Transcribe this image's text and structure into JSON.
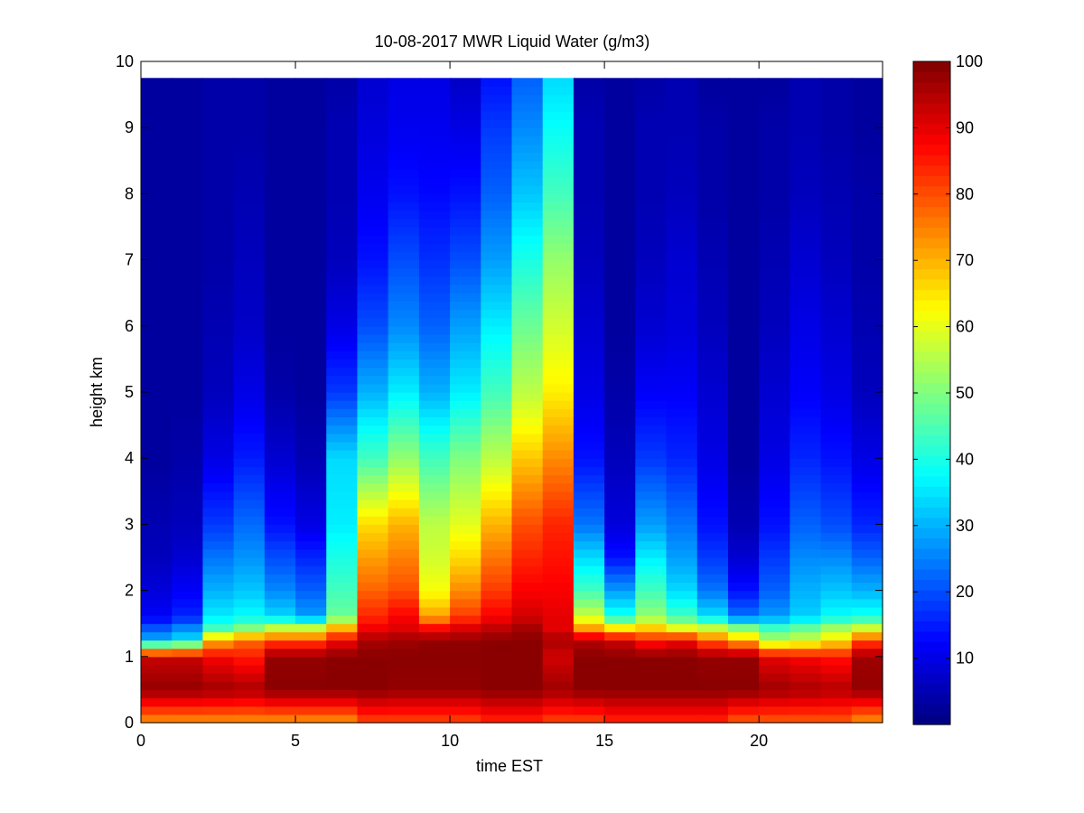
{
  "chart_data": {
    "type": "heatmap",
    "title": "10-08-2017 MWR Liquid Water (g/m3)",
    "xlabel": "time EST",
    "ylabel": "height km",
    "xlim": [
      0,
      24
    ],
    "ylim": [
      0,
      10
    ],
    "x_ticks": [
      "0",
      "5",
      "10",
      "15",
      "20"
    ],
    "y_ticks": [
      "0",
      "1",
      "2",
      "3",
      "4",
      "5",
      "6",
      "7",
      "8",
      "9",
      "10"
    ],
    "colorbar": {
      "colormap": "jet",
      "range": [
        0,
        100
      ],
      "ticks": [
        "10",
        "20",
        "30",
        "40",
        "50",
        "60",
        "70",
        "80",
        "90",
        "100"
      ]
    },
    "time_hours": [
      0.5,
      1.5,
      2.5,
      3.5,
      4.5,
      5.5,
      6.5,
      7.5,
      8.5,
      9.5,
      10.5,
      11.5,
      12.5,
      13.5,
      14.5,
      15.5,
      16.5,
      17.5,
      18.5,
      19.5,
      20.5,
      21.5,
      22.5,
      23.5
    ],
    "height_levels_km": [
      0.05,
      0.5,
      1.0,
      1.25,
      1.45,
      1.6,
      2.0,
      2.5,
      3.0,
      4.0,
      5.0,
      6.0,
      7.0,
      8.0,
      9.0,
      9.75
    ],
    "values": [
      [
        75,
        75,
        75,
        75,
        75,
        75,
        75,
        82,
        82,
        82,
        82,
        85,
        85,
        82,
        82,
        85,
        85,
        85,
        85,
        80,
        80,
        80,
        80,
        75
      ],
      [
        98,
        98,
        97,
        96,
        99,
        99,
        99,
        99,
        98,
        98,
        98,
        99,
        99,
        97,
        99,
        99,
        99,
        99,
        99,
        99,
        97,
        96,
        95,
        98
      ],
      [
        93,
        93,
        88,
        85,
        98,
        98,
        99,
        99,
        99,
        99,
        99,
        99,
        99,
        92,
        99,
        99,
        99,
        99,
        98,
        98,
        90,
        88,
        86,
        97
      ],
      [
        30,
        35,
        70,
        77,
        80,
        80,
        88,
        96,
        97,
        98,
        98,
        99,
        99,
        96,
        95,
        92,
        85,
        88,
        78,
        70,
        55,
        58,
        65,
        80
      ],
      [
        20,
        25,
        42,
        48,
        55,
        55,
        68,
        88,
        90,
        86,
        90,
        93,
        96,
        90,
        70,
        62,
        66,
        58,
        55,
        48,
        42,
        46,
        52,
        56
      ],
      [
        12,
        16,
        36,
        38,
        34,
        28,
        48,
        84,
        88,
        72,
        82,
        88,
        92,
        90,
        58,
        40,
        52,
        44,
        35,
        24,
        28,
        33,
        38,
        40
      ],
      [
        9,
        12,
        30,
        32,
        26,
        22,
        44,
        78,
        80,
        62,
        74,
        82,
        88,
        88,
        44,
        28,
        44,
        34,
        24,
        14,
        22,
        30,
        32,
        30
      ],
      [
        6,
        8,
        24,
        27,
        20,
        16,
        40,
        72,
        75,
        58,
        66,
        76,
        84,
        86,
        34,
        14,
        36,
        28,
        18,
        8,
        18,
        26,
        26,
        22
      ],
      [
        5,
        6,
        18,
        23,
        14,
        10,
        36,
        66,
        70,
        56,
        60,
        70,
        80,
        84,
        24,
        9,
        28,
        24,
        14,
        5,
        14,
        22,
        20,
        16
      ],
      [
        3,
        4,
        10,
        15,
        8,
        5,
        34,
        44,
        52,
        44,
        50,
        56,
        68,
        74,
        14,
        6,
        18,
        16,
        10,
        3,
        10,
        16,
        14,
        10
      ],
      [
        3,
        3,
        6,
        10,
        4,
        3,
        18,
        30,
        36,
        30,
        36,
        44,
        56,
        64,
        10,
        4,
        12,
        12,
        8,
        3,
        8,
        12,
        10,
        6
      ],
      [
        3,
        3,
        5,
        7,
        3,
        3,
        10,
        20,
        26,
        22,
        28,
        36,
        48,
        58,
        8,
        3,
        8,
        9,
        6,
        3,
        6,
        10,
        8,
        5
      ],
      [
        3,
        3,
        4,
        6,
        3,
        3,
        6,
        14,
        20,
        17,
        20,
        28,
        40,
        52,
        6,
        3,
        6,
        8,
        5,
        3,
        5,
        8,
        6,
        4
      ],
      [
        3,
        3,
        4,
        5,
        3,
        3,
        5,
        11,
        14,
        13,
        14,
        22,
        32,
        44,
        5,
        3,
        5,
        6,
        4,
        3,
        4,
        6,
        5,
        4
      ],
      [
        3,
        3,
        4,
        4,
        3,
        3,
        5,
        9,
        11,
        11,
        10,
        18,
        26,
        38,
        5,
        3,
        5,
        5,
        4,
        3,
        4,
        5,
        4,
        3
      ],
      [
        3,
        3,
        4,
        4,
        3,
        3,
        4,
        8,
        10,
        10,
        7,
        14,
        22,
        34,
        4,
        3,
        4,
        5,
        3,
        3,
        3,
        5,
        4,
        3
      ]
    ]
  }
}
